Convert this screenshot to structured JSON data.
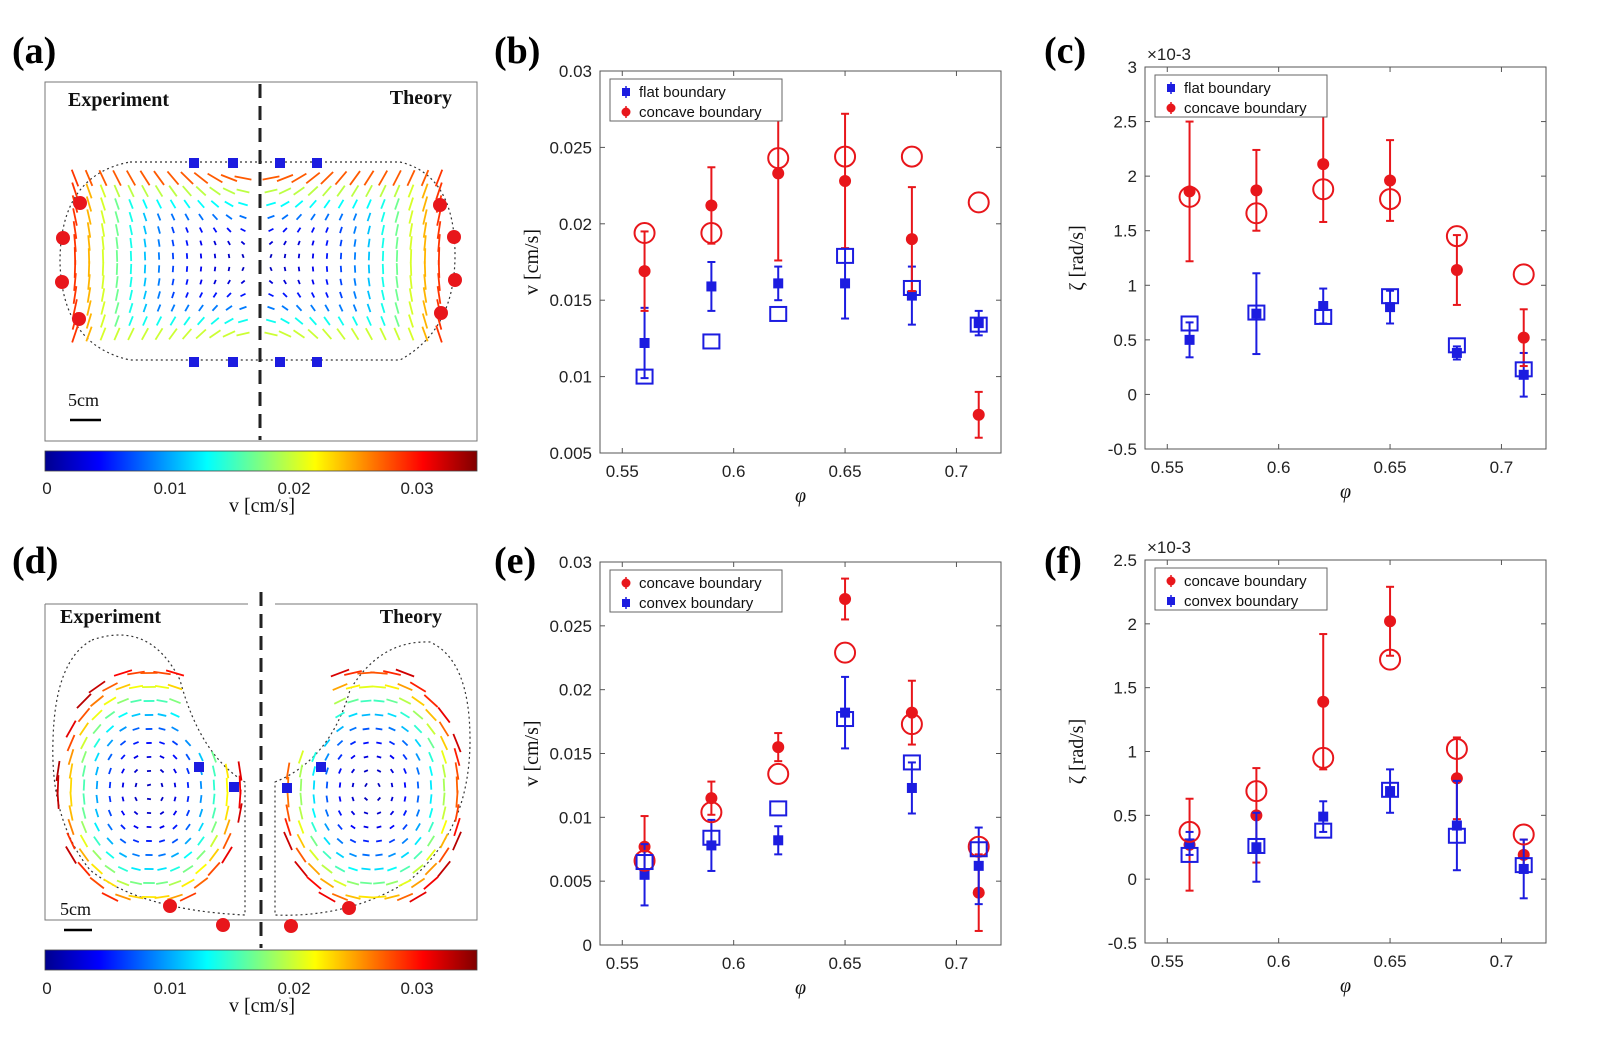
{
  "panel_labels": [
    "(a)",
    "(b)",
    "(c)",
    "(d)",
    "(e)",
    "(f)"
  ],
  "flow_fields": [
    {
      "id": "a",
      "left_label": "Experiment",
      "right_label": "Theory",
      "scale_bar": "5cm"
    },
    {
      "id": "d",
      "left_label": "Experiment",
      "right_label": "Theory",
      "scale_bar": "5cm"
    }
  ],
  "colorbars": [
    {
      "ticks": [
        "0",
        "0.01",
        "0.02",
        "0.03"
      ],
      "label": "v [cm/s]",
      "range": [
        0,
        0.035
      ]
    },
    {
      "ticks": [
        "0",
        "0.01",
        "0.02",
        "0.03"
      ],
      "label": "v [cm/s]",
      "range": [
        0,
        0.035
      ]
    }
  ],
  "colors": {
    "red": "#e8161b",
    "blue": "#1c1ce0",
    "axis": "#555555"
  },
  "chart_data": [
    {
      "id": "b",
      "type": "scatter",
      "x": [
        0.56,
        0.59,
        0.62,
        0.65,
        0.68,
        0.71
      ],
      "xlim": [
        0.54,
        0.72
      ],
      "ylim": [
        0.005,
        0.03
      ],
      "xticks": [
        "0.55",
        "0.6",
        "0.65",
        "0.7"
      ],
      "yticks": [
        "0.005",
        "0.01",
        "0.015",
        "0.02",
        "0.025",
        "0.03"
      ],
      "xlabel": "φ",
      "ylabel": "v [cm/s]",
      "exponent": "",
      "legend": [
        "flat boundary",
        "concave boundary"
      ],
      "series": [
        {
          "name": "flat boundary",
          "color": "blue",
          "marker": "square",
          "values": [
            0.0122,
            0.0159,
            0.0161,
            0.0161,
            0.0153,
            0.0135
          ],
          "err": [
            0.0023,
            0.0016,
            0.0011,
            0.0023,
            0.0019,
            0.0008
          ]
        },
        {
          "name": "concave boundary",
          "color": "red",
          "marker": "circle",
          "values": [
            0.0169,
            0.0212,
            0.0233,
            0.0228,
            0.019,
            0.0075
          ],
          "err": [
            0.0026,
            0.0025,
            0.0057,
            0.0044,
            0.0034,
            0.0015
          ]
        },
        {
          "name": "flat theory",
          "color": "blue",
          "marker": "open-square",
          "values": [
            0.01,
            0.0123,
            0.0141,
            0.0179,
            0.0158,
            0.0134
          ]
        },
        {
          "name": "concave theory",
          "color": "red",
          "marker": "open-circle",
          "values": [
            0.0194,
            0.0194,
            0.0243,
            0.0244,
            0.0244,
            0.0214
          ]
        }
      ]
    },
    {
      "id": "c",
      "type": "scatter",
      "x": [
        0.56,
        0.59,
        0.62,
        0.65,
        0.68,
        0.71
      ],
      "xlim": [
        0.54,
        0.72
      ],
      "ylim": [
        -0.5,
        3
      ],
      "xticks": [
        "0.55",
        "0.6",
        "0.65",
        "0.7"
      ],
      "yticks": [
        "-0.5",
        "0",
        "0.5",
        "1",
        "1.5",
        "2",
        "2.5",
        "3"
      ],
      "xlabel": "φ",
      "ylabel": "ζ [rad/s]",
      "exponent": "×10-3",
      "legend": [
        "flat boundary",
        "concave boundary"
      ],
      "series": [
        {
          "name": "flat boundary",
          "color": "blue",
          "marker": "square",
          "values": [
            0.5,
            0.74,
            0.81,
            0.8,
            0.38,
            0.18
          ],
          "err": [
            0.16,
            0.37,
            0.16,
            0.15,
            0.06,
            0.2
          ]
        },
        {
          "name": "concave boundary",
          "color": "red",
          "marker": "circle",
          "values": [
            1.86,
            1.87,
            2.11,
            1.96,
            1.14,
            0.52
          ],
          "err": [
            0.64,
            0.37,
            0.53,
            0.37,
            0.32,
            0.26
          ]
        },
        {
          "name": "flat theory",
          "color": "blue",
          "marker": "open-square",
          "values": [
            0.65,
            0.75,
            0.71,
            0.9,
            0.45,
            0.23
          ]
        },
        {
          "name": "concave theory",
          "color": "red",
          "marker": "open-circle",
          "values": [
            1.81,
            1.66,
            1.88,
            1.79,
            1.45,
            1.1
          ]
        }
      ]
    },
    {
      "id": "e",
      "type": "scatter",
      "x": [
        0.56,
        0.59,
        0.62,
        0.65,
        0.68,
        0.71
      ],
      "xlim": [
        0.54,
        0.72
      ],
      "ylim": [
        0,
        0.03
      ],
      "xticks": [
        "0.55",
        "0.6",
        "0.65",
        "0.7"
      ],
      "yticks": [
        "0",
        "0.005",
        "0.01",
        "0.015",
        "0.02",
        "0.025",
        "0.03"
      ],
      "xlabel": "φ",
      "ylabel": "v [cm/s]",
      "exponent": "",
      "legend": [
        "concave boundary",
        "convex boundary"
      ],
      "series": [
        {
          "name": "concave boundary",
          "color": "red",
          "marker": "circle",
          "values": [
            0.0077,
            0.0115,
            0.0155,
            0.0271,
            0.0182,
            0.0041
          ],
          "err": [
            0.0024,
            0.0013,
            0.0011,
            0.0016,
            0.0025,
            0.003
          ]
        },
        {
          "name": "convex boundary",
          "color": "blue",
          "marker": "square",
          "values": [
            0.0055,
            0.0078,
            0.0082,
            0.0182,
            0.0123,
            0.0062
          ],
          "err": [
            0.0024,
            0.002,
            0.0011,
            0.0028,
            0.002,
            0.003
          ]
        },
        {
          "name": "concave theory",
          "color": "red",
          "marker": "open-circle",
          "values": [
            0.0066,
            0.0104,
            0.0134,
            0.0229,
            0.0173,
            0.0077
          ]
        },
        {
          "name": "convex theory",
          "color": "blue",
          "marker": "open-square",
          "values": [
            0.0065,
            0.0084,
            0.0107,
            0.0177,
            0.0143,
            0.0075
          ]
        }
      ]
    },
    {
      "id": "f",
      "type": "scatter",
      "x": [
        0.56,
        0.59,
        0.62,
        0.65,
        0.68,
        0.71
      ],
      "xlim": [
        0.54,
        0.72
      ],
      "ylim": [
        -0.5,
        2.5
      ],
      "xticks": [
        "0.55",
        "0.6",
        "0.65",
        "0.7"
      ],
      "yticks": [
        "-0.5",
        "0",
        "0.5",
        "1",
        "1.5",
        "2",
        "2.5"
      ],
      "xlabel": "φ",
      "ylabel": "ζ [rad/s]",
      "exponent": "×10-3",
      "legend": [
        "concave boundary",
        "convex boundary"
      ],
      "series": [
        {
          "name": "concave boundary",
          "color": "red",
          "marker": "circle",
          "values": [
            0.27,
            0.5,
            1.39,
            2.02,
            0.79,
            0.19
          ],
          "err": [
            0.36,
            0.37,
            0.53,
            0.27,
            0.32,
            0.12
          ]
        },
        {
          "name": "convex boundary",
          "color": "blue",
          "marker": "square",
          "values": [
            0.28,
            0.25,
            0.49,
            0.69,
            0.42,
            0.08
          ],
          "err": [
            0.09,
            0.27,
            0.12,
            0.17,
            0.35,
            0.23
          ]
        },
        {
          "name": "concave theory",
          "color": "red",
          "marker": "open-circle",
          "values": [
            0.37,
            0.69,
            0.95,
            1.72,
            1.02,
            0.35
          ]
        },
        {
          "name": "convex theory",
          "color": "blue",
          "marker": "open-square",
          "values": [
            0.19,
            0.26,
            0.38,
            0.7,
            0.34,
            0.11
          ]
        }
      ]
    }
  ]
}
